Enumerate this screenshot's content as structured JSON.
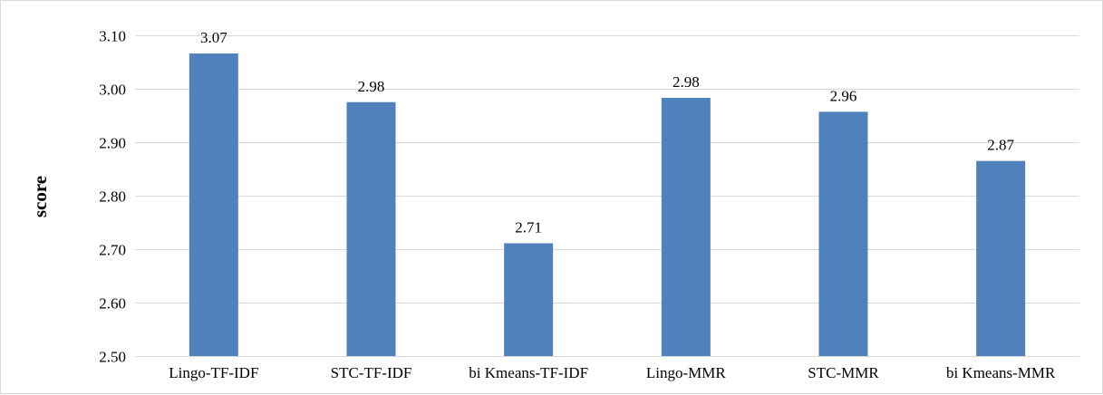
{
  "chart_data": {
    "type": "bar",
    "title": "",
    "xlabel": "",
    "ylabel": "score",
    "categories": [
      "Lingo-TF-IDF",
      "STC-TF-IDF",
      "bi Kmeans-TF-IDF",
      "Lingo-MMR",
      "STC-MMR",
      "bi Kmeans-MMR"
    ],
    "values": [
      3.066,
      2.975,
      2.711,
      2.983,
      2.957,
      2.865
    ],
    "data_labels": [
      "3.07",
      "2.98",
      "2.71",
      "2.98",
      "2.96",
      "2.87"
    ],
    "ylim": [
      2.5,
      3.1
    ],
    "yticks": [
      2.5,
      2.6,
      2.7,
      2.8,
      2.9,
      3.0,
      3.1
    ],
    "ytick_labels": [
      "2.50",
      "2.60",
      "2.70",
      "2.80",
      "2.90",
      "3.00",
      "3.10"
    ],
    "grid": true,
    "legend": "none",
    "bar_color": "#4f81bd",
    "grid_color": "#d9d9d9"
  }
}
